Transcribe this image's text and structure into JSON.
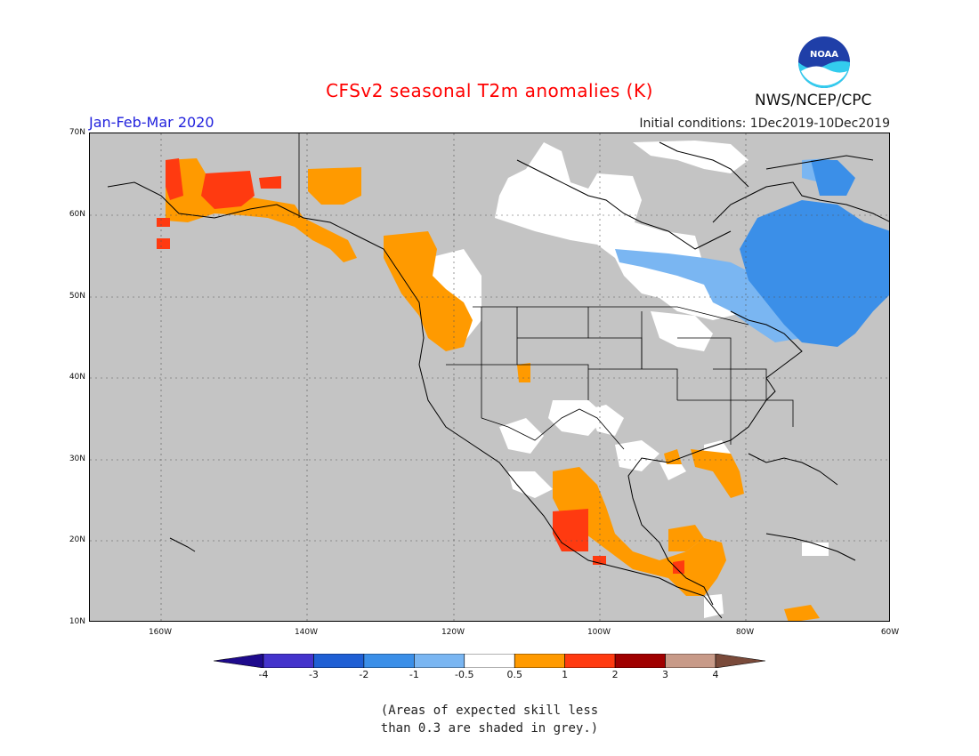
{
  "title": "CFSv2 seasonal T2m anomalies (K)",
  "period": "Jan-Feb-Mar 2020",
  "initial_conditions": "Initial conditions: 1Dec2019-10Dec2019",
  "agency": "NWS/NCEP/CPC",
  "logo_text": "NOAA",
  "lat_labels": [
    "70N",
    "60N",
    "50N",
    "40N",
    "30N",
    "20N",
    "10N"
  ],
  "lon_labels": [
    "160W",
    "140W",
    "120W",
    "100W",
    "80W",
    "60W"
  ],
  "colorbar": {
    "labels": [
      "-4",
      "-3",
      "-2",
      "-1",
      "-0.5",
      "0.5",
      "1",
      "2",
      "3",
      "4"
    ],
    "colors": [
      "#1e0a8c",
      "#4433cc",
      "#1f5fd4",
      "#3b8fe8",
      "#7ab6f2",
      "#ffffff",
      "#ff9a00",
      "#ff3a10",
      "#a00000",
      "#c89a88",
      "#7a4a3a"
    ]
  },
  "note_line1": "(Areas of expected skill less",
  "note_line2": "than 0.3 are shaded in grey.)",
  "colors": {
    "skill_mask": "#c4c4c4",
    "near_normal": "#ffffff",
    "warm_0_5_1": "#ff9a00",
    "warm_1_2": "#ff3a10",
    "cold_0_5_1": "#7ab6f2",
    "cold_1_2": "#3b8fe8"
  }
}
